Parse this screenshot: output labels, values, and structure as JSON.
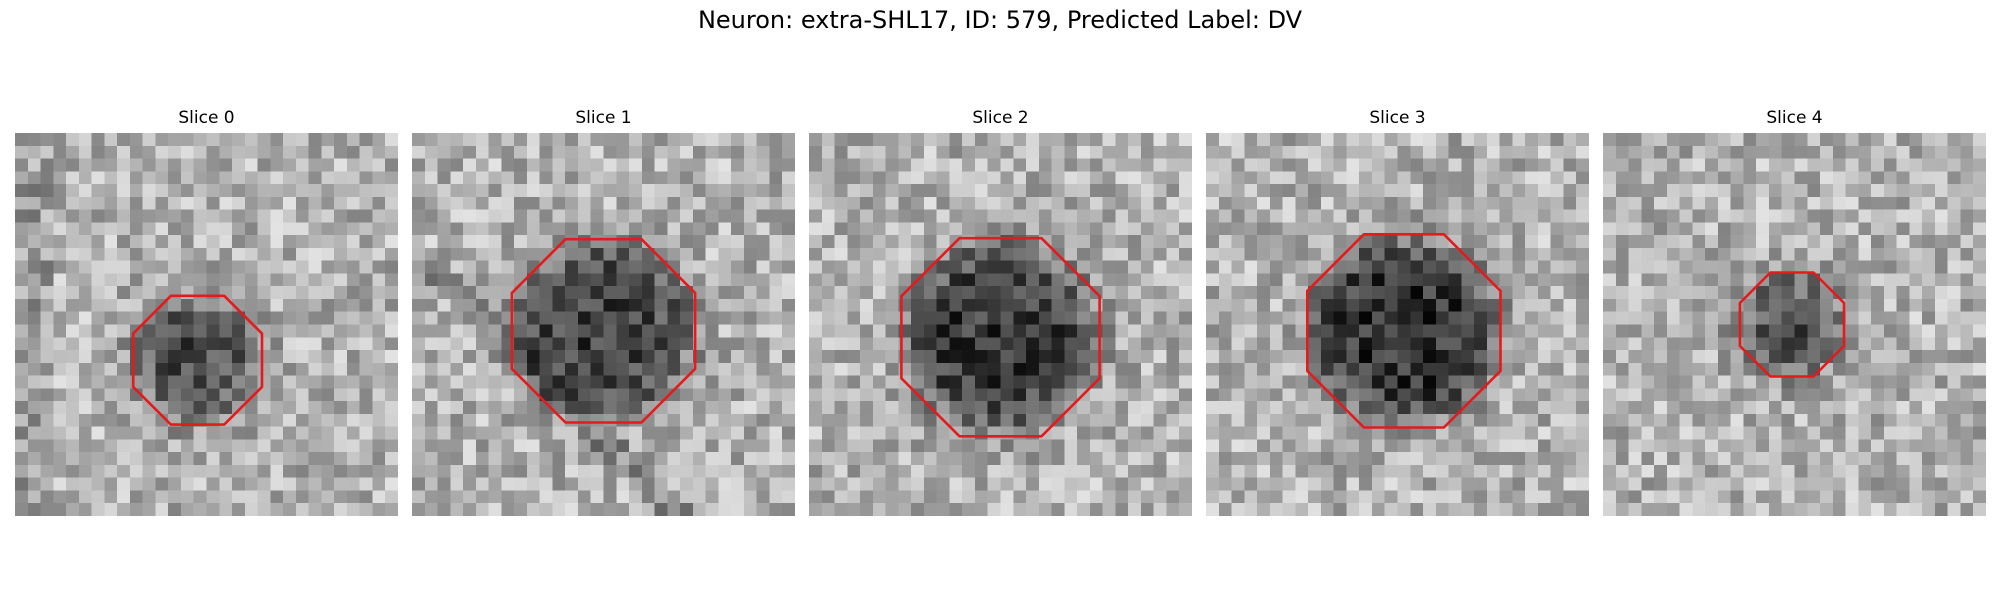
{
  "figure": {
    "title": "Neuron: extra-SHL17, ID: 579, Predicted Label: DV"
  },
  "slices": [
    {
      "title": "Slice 0",
      "seed": 11,
      "center": [
        14.3,
        17.8
      ],
      "radius": 5.2,
      "dark": 0.42
    },
    {
      "title": "Slice 1",
      "seed": 23,
      "center": [
        15.0,
        15.5
      ],
      "radius": 7.4,
      "dark": 0.45
    },
    {
      "title": "Slice 2",
      "seed": 37,
      "center": [
        15.0,
        16.0
      ],
      "radius": 8.0,
      "dark": 0.48
    },
    {
      "title": "Slice 3",
      "seed": 41,
      "center": [
        15.5,
        15.5
      ],
      "radius": 7.8,
      "dark": 0.52
    },
    {
      "title": "Slice 4",
      "seed": 53,
      "center": [
        14.8,
        15.0
      ],
      "radius": 4.2,
      "dark": 0.4
    }
  ],
  "colors": {
    "contour": "#e41a1c"
  }
}
